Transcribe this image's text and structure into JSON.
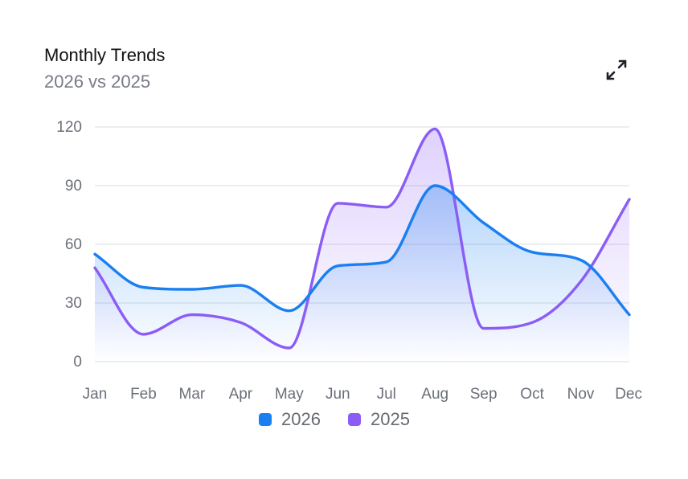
{
  "card": {
    "title": "Monthly Trends",
    "subtitle": "2026 vs 2025",
    "expand_icon": "expand-icon"
  },
  "chart_data": {
    "type": "area",
    "title": "Monthly Trends",
    "subtitle": "2026 vs 2025",
    "categories": [
      "Jan",
      "Feb",
      "Mar",
      "Apr",
      "May",
      "Jun",
      "Jul",
      "Aug",
      "Sep",
      "Oct",
      "Nov",
      "Dec"
    ],
    "series": [
      {
        "name": "2026",
        "color": "#1a7ff0",
        "values": [
          55,
          38,
          37,
          39,
          26,
          49,
          51,
          90,
          71,
          56,
          52,
          24
        ]
      },
      {
        "name": "2025",
        "color": "#8b5cf6",
        "values": [
          48,
          14,
          24,
          20,
          7,
          81,
          79,
          119,
          17,
          20,
          41,
          83
        ]
      }
    ],
    "yticks": [
      0,
      30,
      60,
      90,
      120
    ],
    "ylim": [
      0,
      120
    ],
    "grid": true,
    "curve": "smooth",
    "legend_position": "bottom-center"
  },
  "colors": {
    "grid": "#e6e7eb",
    "tick_text": "#6b6f78"
  }
}
